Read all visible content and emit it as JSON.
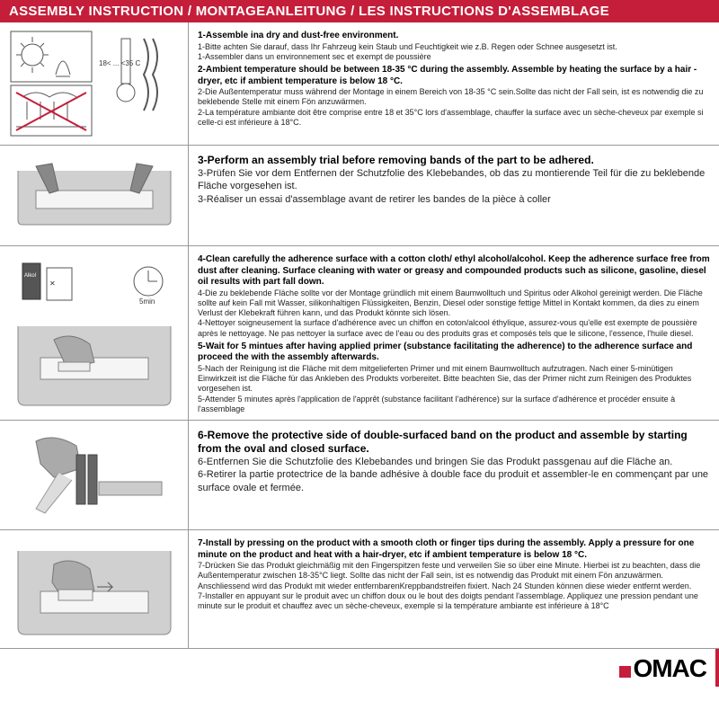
{
  "colors": {
    "header_bg": "#c41e3a",
    "header_text": "#ffffff",
    "border": "#999999",
    "text": "#222222",
    "logo_accent": "#c41e3a"
  },
  "header": "ASSEMBLY INSTRUCTION / MONTAGEANLEITUNG / LES INSTRUCTIONS D'ASSEMBLAGE",
  "logo_text": "OMAC",
  "steps": [
    {
      "instructions": [
        {
          "bold": "1-Assemble ina dry and dust-free environment.",
          "lines": [
            "1-Bitte achten Sie darauf, dass Ihr Fahrzeug kein Staub und Feuchtigkeit wie z.B. Regen oder Schnee ausgesetzt ist.",
            "1-Assembler dans un environnement sec et exempt de poussière"
          ]
        },
        {
          "bold": "2-Ambient temperature should be between 18-35 °C  during the assembly. Assemble by heating the surface by a hair -dryer, etc if ambient temperature is below 18 °C.",
          "lines": [
            "2-Die Außentemperatur muss während der Montage in einem Bereich von 18-35 °C  sein.Sollte das nicht der Fall sein, ist es notwendig die zu beklebende Stelle mit einem Fön anzuwärmen.",
            "2-La température ambiante doit être comprise entre 18 et 35°C lors d'assemblage, chauffer la surface avec un sèche-cheveux par exemple si celle-ci est inférieure à 18°C."
          ]
        }
      ]
    },
    {
      "instructions": [
        {
          "bold": "3-Perform an assembly trial before removing bands of the part to be adhered.",
          "lines": [
            "3-Prüfen Sie vor dem Entfernen der Schutzfolie des Klebebandes, ob das zu montierende Teil für die zu beklebende Fläche vorgesehen ist.",
            "3-Réaliser un essai d'assemblage avant de retirer les bandes de la pièce à coller"
          ],
          "large": true
        }
      ]
    },
    {
      "instructions": [
        {
          "bold": "4-Clean carefully the adherence surface with a cotton cloth/ ethyl alcohol/alcohol. Keep the adherence surface free from dust after cleaning. Surface cleaning with water or greasy and compounded products such as silicone, gasoline, diesel oil results with part fall down.",
          "lines": [
            "4-Die zu beklebende Fläche sollte vor der Montage gründlich mit einem Baumwolltuch und Spiritus oder Alkohol gereinigt werden. Die Fläche sollte auf kein Fall mit Wasser, silikonhaltigen Flüssigkeiten, Benzin, Diesel oder sonstige fettige Mittel in Kontakt kommen, da dies zu einem Verlust der Klebekraft führen kann, und das Produkt könnte sich lösen.",
            "4-Nettoyer soigneusement la surface d'adhérence avec un chiffon en coton/alcool éthylique, assurez-vous qu'elle est exempte de poussière après le nettoyage. Ne pas nettoyer la surface avec de l'eau ou des produits gras et composés tels que le silicone, l'essence, l'huile diesel."
          ]
        },
        {
          "bold": "5-Wait for 5 mintues after having applied primer (substance facilitating the adherence) to the adherence surface and proceed the with the assembly afterwards.",
          "lines": [
            "5-Nach der Reinigung ist die Fläche mit dem mitgelieferten Primer und mit einem Baumwolltuch aufzutragen. Nach einer 5-minütigen Einwirkzeit ist die Fläche für das Ankleben des Produkts vorbereitet. Bitte beachten Sie, das der Primer nicht zum Reinigen des Produktes vorgesehen ist.",
            "5-Attender 5 minutes après l'application de l'apprêt (substance facilitant l'adhérence) sur la surface d'adhérence et procéder ensuite à l'assemblage"
          ]
        }
      ]
    },
    {
      "instructions": [
        {
          "bold": "6-Remove the protective side of double-surfaced band on the product and assemble by starting from the oval and closed surface.",
          "lines": [
            "6-Entfernen Sie die Schutzfolie des Klebebandes und bringen Sie das Produkt passgenau auf die Fläche an.",
            "6-Retirer la partie protectrice de la bande adhésive à double face du produit et assembler-le en commençant par une surface ovale et fermée."
          ],
          "large": true
        }
      ]
    },
    {
      "instructions": [
        {
          "bold": "7-Install by pressing on the product with a smooth cloth or finger tips during the assembly. Apply a pressure for one minute on the product and heat with a hair-dryer, etc if ambient temperature is below 18 °C.",
          "lines": [
            "7-Drücken Sie das Produkt gleichmäßig mit den Fingerspitzen feste und verweilen Sie so über eine Minute. Hierbei ist zu beachten, dass die Außentemperatur zwischen 18-35°C liegt. Sollte das nicht der Fall sein, ist es notwendig das Produkt mit einem Fön anzuwärmen. Anschliessend wird das Produkt mit wieder entfernbarenKreppbandstreifen fixiert. Nach 24 Stunden können diese wieder entfernt werden.",
            "7-Installer en appuyant sur le produit avec un chiffon doux ou le bout des doigts pendant l'assemblage. Appliquez une pression pendant une minute sur le produit et chauffez avec un sèche-cheveux, exemple si la température ambiante est inférieure à 18°C"
          ]
        }
      ]
    }
  ],
  "temp_label": "18< ... <35 C"
}
